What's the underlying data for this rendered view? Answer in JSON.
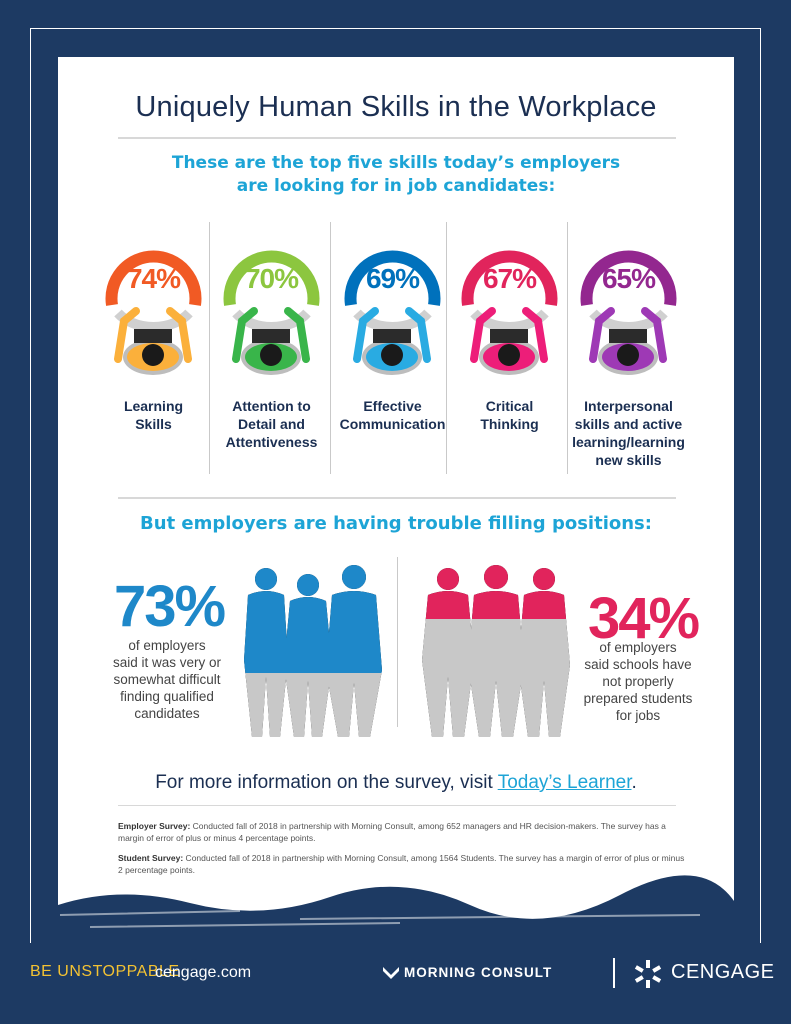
{
  "title": "Uniquely Human Skills in the Workplace",
  "subtitle": {
    "line1": "These are the top five skills today’s employers",
    "line2": "are looking for in job candidates:"
  },
  "skills": [
    {
      "percent": "74%",
      "label_lines": [
        "Learning",
        "Skills"
      ],
      "color": "#f15a24",
      "shirt": "#fbb03b"
    },
    {
      "percent": "70%",
      "label_lines": [
        "Attention to",
        "Detail and",
        "Attentiveness"
      ],
      "color": "#8cc63f",
      "shirt": "#39b54a"
    },
    {
      "percent": "69%",
      "label_lines": [
        "Effective",
        "Communication"
      ],
      "color": "#0071bc",
      "shirt": "#29abe2"
    },
    {
      "percent": "67%",
      "label_lines": [
        "Critical",
        "Thinking"
      ],
      "color": "#e1245c",
      "shirt": "#ed1e79"
    },
    {
      "percent": "65%",
      "label_lines": [
        "Interpersonal",
        "skills and active",
        "learning/learning",
        "new skills"
      ],
      "color": "#93278f",
      "shirt": "#9e39b5"
    }
  ],
  "trouble": {
    "heading": "But employers are having trouble filling positions:",
    "left": {
      "percent": "73%",
      "lines": [
        "of employers",
        "said it was very or",
        "somewhat difficult",
        "finding qualified",
        "candidates"
      ],
      "color": "#1e88c9"
    },
    "right": {
      "percent": "34%",
      "lines": [
        "of employers",
        "said schools have",
        "not properly",
        "prepared students",
        "for jobs"
      ],
      "color": "#e1245c"
    }
  },
  "more_info": {
    "prefix": "For more information on the survey, visit ",
    "link": "Today’s Learner",
    "suffix": "."
  },
  "notes": {
    "employer_label": "Employer Survey:",
    "employer_text": " Conducted fall of 2018 in partnership with Morning Consult, among 652 managers and HR decision-makers. The survey has a margin of error of plus or minus 4 percentage points.",
    "student_label": "Student Survey:",
    "student_text": " Conducted fall of 2018 in partnership with Morning Consult, among 1564 Students. The survey has a margin of error of plus or minus 2 percentage points."
  },
  "footer": {
    "tagline": "BE UNSTOPPABLE",
    "site": "cengage.com",
    "partner": "MORNING CONSULT",
    "brand": "CENGAGE"
  },
  "colors": {
    "background": "#1d3a63",
    "accent": "#1da4d6",
    "gray_figure": "#c8c8c8"
  }
}
